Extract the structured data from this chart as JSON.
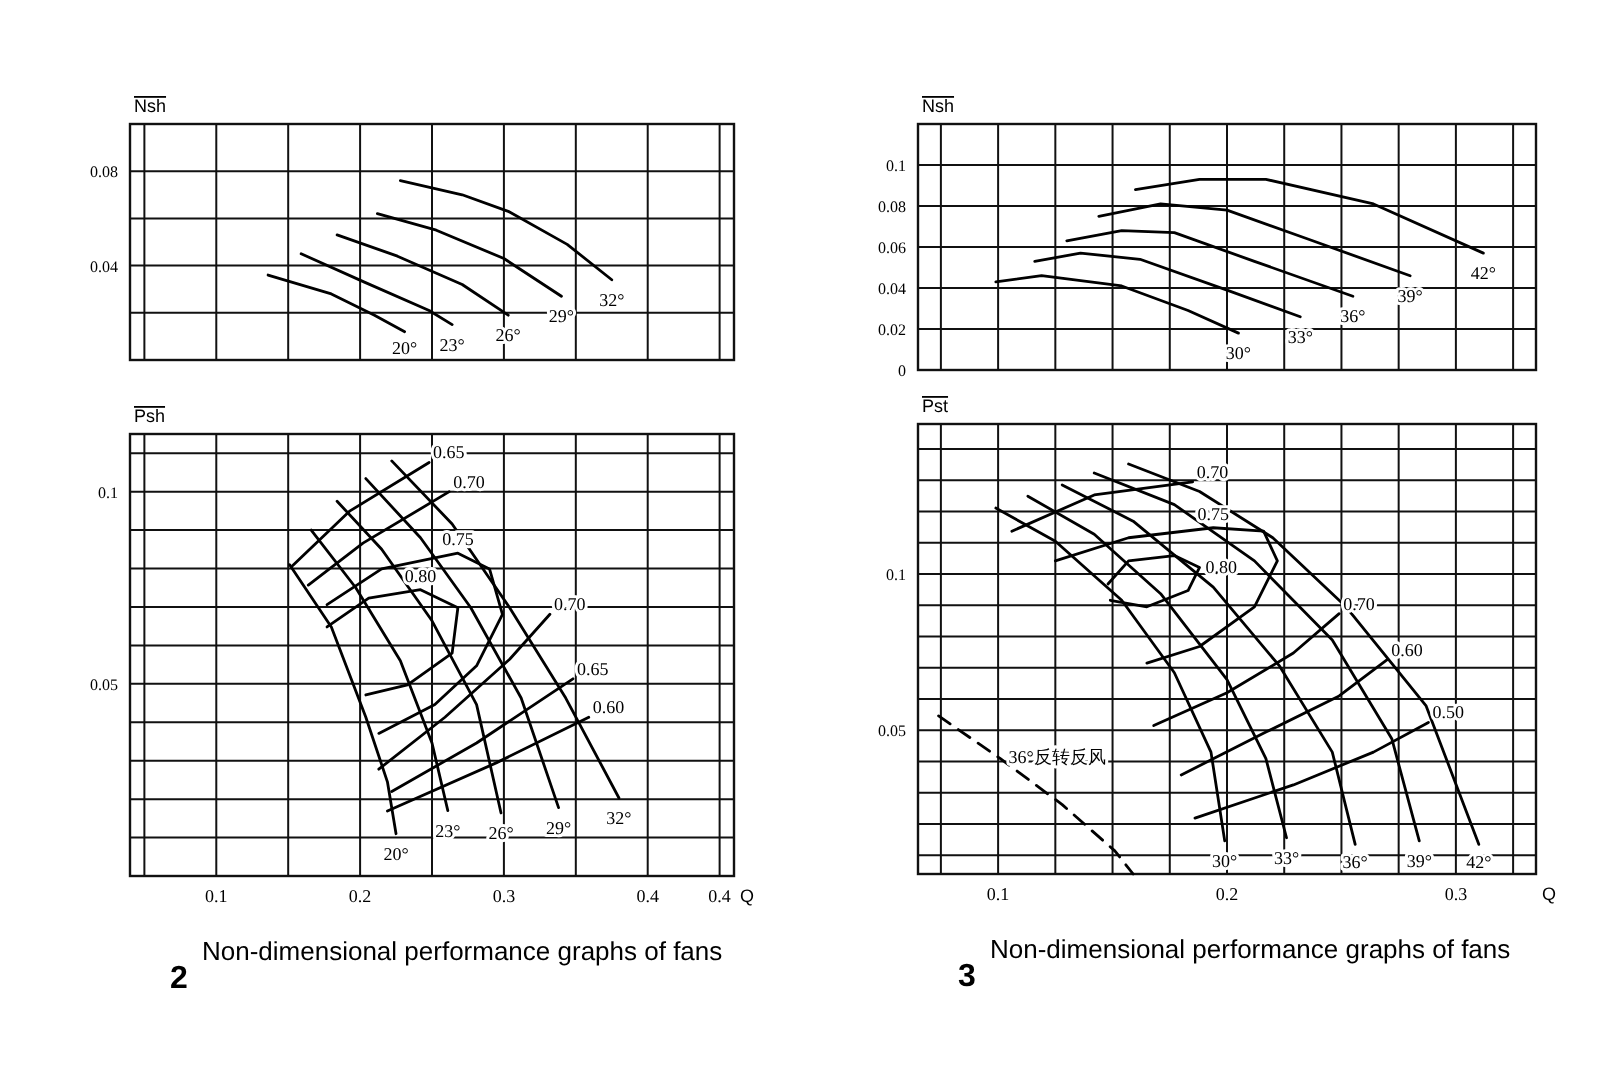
{
  "chart_data": [
    {
      "type": "line",
      "ylabel": "Nsh",
      "xlim": [
        0.04,
        0.46
      ],
      "ylim": [
        0,
        0.1
      ],
      "xticks": [
        0.05,
        0.1,
        0.15,
        0.2,
        0.25,
        0.3,
        0.35,
        0.4,
        0.45
      ],
      "yticks": [
        {
          "value": 0.02,
          "label": null
        },
        0.04,
        {
          "value": 0.06,
          "label": null
        },
        0.08
      ],
      "grid": true,
      "tick_labels": "y",
      "line_style": "solid",
      "series": [
        {
          "name": "20°",
          "color": "#000000",
          "x": [
            0.136,
            0.18,
            0.21,
            0.231
          ],
          "values": [
            0.036,
            0.028,
            0.019,
            0.012
          ]
        },
        {
          "name": "23°",
          "color": "#000000",
          "x": [
            0.159,
            0.203,
            0.248,
            0.264
          ],
          "values": [
            0.045,
            0.033,
            0.021,
            0.015
          ]
        },
        {
          "name": "26°",
          "color": "#000000",
          "x": [
            0.184,
            0.226,
            0.271,
            0.303
          ],
          "values": [
            0.053,
            0.044,
            0.032,
            0.019
          ]
        },
        {
          "name": "29°",
          "color": "#000000",
          "x": [
            0.212,
            0.253,
            0.3,
            0.34
          ],
          "values": [
            0.062,
            0.055,
            0.043,
            0.027
          ]
        },
        {
          "name": "32°",
          "color": "#000000",
          "x": [
            0.228,
            0.271,
            0.303,
            0.344,
            0.375
          ],
          "values": [
            0.076,
            0.07,
            0.063,
            0.049,
            0.034
          ]
        }
      ]
    },
    {
      "type": "line",
      "ylabel": "Nsh",
      "xlim": [
        0.065,
        0.335
      ],
      "ylim": [
        0,
        0.12
      ],
      "xticks": [
        0.075,
        0.1,
        0.125,
        0.15,
        0.175,
        0.2,
        0.225,
        0.25,
        0.275,
        0.3,
        0.325
      ],
      "yticks": [
        0,
        0.02,
        0.04,
        0.06,
        0.08,
        0.1
      ],
      "grid": true,
      "tick_labels": "y",
      "line_style": "solid",
      "series": [
        {
          "name": "30°",
          "color": "#000000",
          "x": [
            0.099,
            0.119,
            0.154,
            0.183,
            0.205
          ],
          "values": [
            0.043,
            0.046,
            0.041,
            0.029,
            0.018
          ]
        },
        {
          "name": "33°",
          "color": "#000000",
          "x": [
            0.116,
            0.136,
            0.162,
            0.2,
            0.232
          ],
          "values": [
            0.053,
            0.057,
            0.054,
            0.039,
            0.026
          ]
        },
        {
          "name": "36°",
          "color": "#000000",
          "x": [
            0.13,
            0.154,
            0.177,
            0.212,
            0.255
          ],
          "values": [
            0.063,
            0.068,
            0.067,
            0.053,
            0.036
          ]
        },
        {
          "name": "39°",
          "color": "#000000",
          "x": [
            0.144,
            0.171,
            0.2,
            0.235,
            0.28
          ],
          "values": [
            0.075,
            0.081,
            0.078,
            0.064,
            0.046
          ]
        },
        {
          "name": "42°",
          "color": "#000000",
          "x": [
            0.16,
            0.188,
            0.217,
            0.264,
            0.312
          ],
          "values": [
            0.088,
            0.093,
            0.093,
            0.081,
            0.057
          ]
        }
      ]
    },
    {
      "type": "line",
      "ylabel": "Psh",
      "xlabel": "Q",
      "xlim": [
        0.04,
        0.46
      ],
      "ylim": [
        0,
        0.115
      ],
      "xticks": [
        {
          "value": 0.05,
          "label": null
        },
        0.1,
        {
          "value": 0.15,
          "label": null
        },
        0.2,
        {
          "value": 0.25,
          "label": null
        },
        0.3,
        {
          "value": 0.35,
          "label": null
        },
        0.4,
        {
          "value": 0.45,
          "label": "0.4"
        }
      ],
      "yticks": [
        {
          "value": 0.01,
          "label": null
        },
        {
          "value": 0.02,
          "label": null
        },
        {
          "value": 0.03,
          "label": null
        },
        {
          "value": 0.04,
          "label": null
        },
        0.05,
        {
          "value": 0.06,
          "label": null
        },
        {
          "value": 0.07,
          "label": null
        },
        {
          "value": 0.08,
          "label": null
        },
        {
          "value": 0.09,
          "label": null
        },
        0.1,
        {
          "value": 0.11,
          "label": null
        }
      ],
      "grid": true,
      "line_style": "solid",
      "annotations": [
        "2",
        "Non-dimensional performance graphs of fans"
      ],
      "series": [
        {
          "name": "20°",
          "color": "#000000",
          "x": [
            0.151,
            0.18,
            0.204,
            0.219,
            0.225
          ],
          "values": [
            0.081,
            0.0648,
            0.0413,
            0.0245,
            0.011
          ]
        },
        {
          "name": "23°",
          "color": "#000000",
          "x": [
            0.166,
            0.197,
            0.228,
            0.25,
            0.261
          ],
          "values": [
            0.09,
            0.075,
            0.056,
            0.0346,
            0.017
          ]
        },
        {
          "name": "26°",
          "color": "#000000",
          "x": [
            0.184,
            0.215,
            0.25,
            0.281,
            0.298
          ],
          "values": [
            0.0975,
            0.085,
            0.0664,
            0.0446,
            0.0164
          ]
        },
        {
          "name": "29°",
          "color": "#000000",
          "x": [
            0.204,
            0.242,
            0.277,
            0.312,
            0.338
          ],
          "values": [
            0.1034,
            0.088,
            0.0698,
            0.0463,
            0.0178
          ]
        },
        {
          "name": "32°",
          "color": "#000000",
          "x": [
            0.222,
            0.264,
            0.304,
            0.343,
            0.38
          ],
          "values": [
            0.108,
            0.0916,
            0.0698,
            0.0463,
            0.0203
          ]
        },
        {
          "name": "0.65",
          "color": "#000000",
          "x": [
            0.153,
            0.193,
            0.248
          ],
          "values": [
            0.0807,
            0.095,
            0.1076
          ]
        },
        {
          "name": "0.70",
          "color": "#000000",
          "x": [
            0.164,
            0.202,
            0.262
          ],
          "values": [
            0.0757,
            0.0866,
            0.1
          ]
        },
        {
          "name": "0.75",
          "color": "#000000",
          "x": [
            0.177,
            0.215,
            0.268,
            0.29,
            0.299,
            0.281,
            0.252,
            0.213
          ],
          "values": [
            0.0706,
            0.0799,
            0.084,
            0.0799,
            0.0681,
            0.0547,
            0.0446,
            0.0371
          ]
        },
        {
          "name": "0.80",
          "color": "#000000",
          "x": [
            0.177,
            0.206,
            0.242,
            0.268,
            0.264,
            0.233,
            0.204
          ],
          "values": [
            0.0648,
            0.0723,
            0.0745,
            0.0698,
            0.058,
            0.0497,
            0.0471
          ]
        },
        {
          "name": "0.70",
          "color": "#000000",
          "x": [
            0.213,
            0.259,
            0.304,
            0.332
          ],
          "values": [
            0.0278,
            0.0413,
            0.0564,
            0.0681
          ]
        },
        {
          "name": "0.65",
          "color": "#000000",
          "x": [
            0.222,
            0.281,
            0.348
          ],
          "values": [
            0.022,
            0.0346,
            0.0513
          ]
        },
        {
          "name": "0.60",
          "color": "#000000",
          "x": [
            0.219,
            0.295,
            0.359
          ],
          "values": [
            0.0169,
            0.0295,
            0.0413
          ]
        }
      ]
    },
    {
      "type": "line",
      "ylabel": "Pst",
      "xlabel": "Q",
      "xlim": [
        0.065,
        0.335
      ],
      "ylim": [
        0.004,
        0.148
      ],
      "xticks": [
        {
          "value": 0.075,
          "label": null
        },
        0.1,
        {
          "value": 0.125,
          "label": null
        },
        {
          "value": 0.15,
          "label": null
        },
        {
          "value": 0.175,
          "label": null
        },
        0.2,
        {
          "value": 0.225,
          "label": null
        },
        {
          "value": 0.25,
          "label": null
        },
        {
          "value": 0.275,
          "label": null
        },
        0.3,
        {
          "value": 0.325,
          "label": null
        }
      ],
      "yticks": [
        {
          "value": 0.01,
          "label": null
        },
        {
          "value": 0.02,
          "label": null
        },
        {
          "value": 0.03,
          "label": null
        },
        {
          "value": 0.04,
          "label": null
        },
        0.05,
        {
          "value": 0.06,
          "label": null
        },
        {
          "value": 0.07,
          "label": null
        },
        {
          "value": 0.08,
          "label": null
        },
        {
          "value": 0.09,
          "label": null
        },
        0.1,
        {
          "value": 0.11,
          "label": null
        },
        {
          "value": 0.12,
          "label": null
        },
        {
          "value": 0.13,
          "label": null
        },
        {
          "value": 0.14,
          "label": null
        }
      ],
      "grid": true,
      "line_style": "solid",
      "annotations": [
        "3",
        "Non-dimensional performance graphs of fans"
      ],
      "series": [
        {
          "name": "30°",
          "color": "#000000",
          "x": [
            0.099,
            0.125,
            0.154,
            0.177,
            0.193,
            0.199
          ],
          "values": [
            0.1211,
            0.1105,
            0.0916,
            0.0684,
            0.043,
            0.0146
          ]
        },
        {
          "name": "33°",
          "color": "#000000",
          "x": [
            0.113,
            0.142,
            0.171,
            0.2,
            0.217,
            0.226
          ],
          "values": [
            0.1249,
            0.1127,
            0.0937,
            0.0662,
            0.0409,
            0.0156
          ]
        },
        {
          "name": "36°",
          "color": "#000000",
          "x": [
            0.128,
            0.159,
            0.194,
            0.223,
            0.246,
            0.256
          ],
          "values": [
            0.1285,
            0.1169,
            0.0958,
            0.0705,
            0.043,
            0.0135
          ]
        },
        {
          "name": "39°",
          "color": "#000000",
          "x": [
            0.142,
            0.177,
            0.212,
            0.246,
            0.272,
            0.284
          ],
          "values": [
            0.1323,
            0.1222,
            0.1042,
            0.0789,
            0.0473,
            0.0146
          ]
        },
        {
          "name": "42°",
          "color": "#000000",
          "x": [
            0.157,
            0.188,
            0.22,
            0.252,
            0.287,
            0.31
          ],
          "values": [
            0.1352,
            0.1264,
            0.1116,
            0.0895,
            0.0578,
            0.0135
          ]
        },
        {
          "name": "0.70",
          "color": "#000000",
          "x": [
            0.106,
            0.142,
            0.185
          ],
          "values": [
            0.1137,
            0.1253,
            0.1295
          ]
        },
        {
          "name": "0.75",
          "color": "#000000",
          "x": [
            0.125,
            0.157,
            0.194,
            0.216,
            0.222,
            0.212,
            0.188,
            0.165
          ],
          "values": [
            0.1042,
            0.1116,
            0.1148,
            0.1137,
            0.1042,
            0.0895,
            0.0768,
            0.0715
          ]
        },
        {
          "name": "0.80",
          "color": "#000000",
          "x": [
            0.148,
            0.157,
            0.177,
            0.188,
            0.183,
            0.165,
            0.149
          ],
          "values": [
            0.0968,
            0.1042,
            0.1059,
            0.1021,
            0.0947,
            0.0895,
            0.0916
          ]
        },
        {
          "name": "0.70",
          "color": "#000000",
          "x": [
            0.168,
            0.2,
            0.229,
            0.249
          ],
          "values": [
            0.0515,
            0.062,
            0.0747,
            0.0873
          ]
        },
        {
          "name": "0.60",
          "color": "#000000",
          "x": [
            0.18,
            0.217,
            0.249,
            0.27
          ],
          "values": [
            0.0357,
            0.0494,
            0.061,
            0.0726
          ]
        },
        {
          "name": "0.50",
          "color": "#000000",
          "x": [
            0.186,
            0.229,
            0.264,
            0.288
          ],
          "values": [
            0.0219,
            0.0325,
            0.043,
            0.0525
          ]
        },
        {
          "name": "36°反转反风",
          "color": "#000000",
          "line_style": "dashed",
          "x": [
            0.074,
            0.101,
            0.128,
            0.151,
            0.159
          ],
          "values": [
            0.0546,
            0.0409,
            0.0262,
            0.0114,
            0.004
          ]
        }
      ]
    }
  ]
}
